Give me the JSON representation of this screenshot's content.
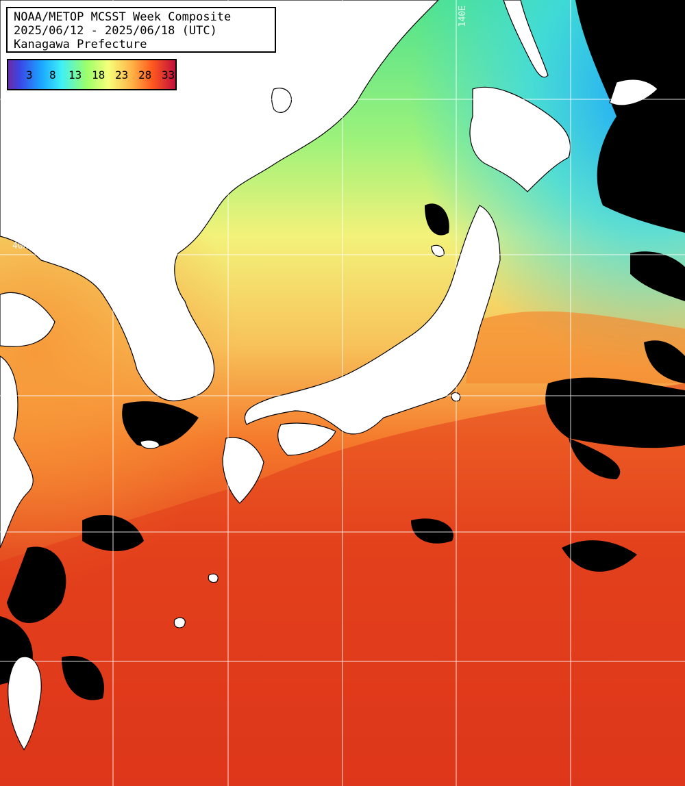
{
  "title": {
    "line1": "NOAA/METOP MCSST Week Composite",
    "line2": "2025/06/12 - 2025/06/18 (UTC)",
    "line3": "Kanagawa Prefecture"
  },
  "colorbar": {
    "ticks": [
      "3",
      "8",
      "13",
      "18",
      "23",
      "28",
      "33"
    ],
    "unit_hint": "sea-surface-temperature"
  },
  "grid": {
    "lon_label": "140E",
    "lat_label": "40N"
  },
  "colors": {
    "land": "#ffffff",
    "cloud_mask": "#000000",
    "grid": "#ffffff",
    "warm": "#d8301a",
    "mid": "#f7e07a",
    "cool": "#6ff08a",
    "cold": "#1fb7ff"
  }
}
